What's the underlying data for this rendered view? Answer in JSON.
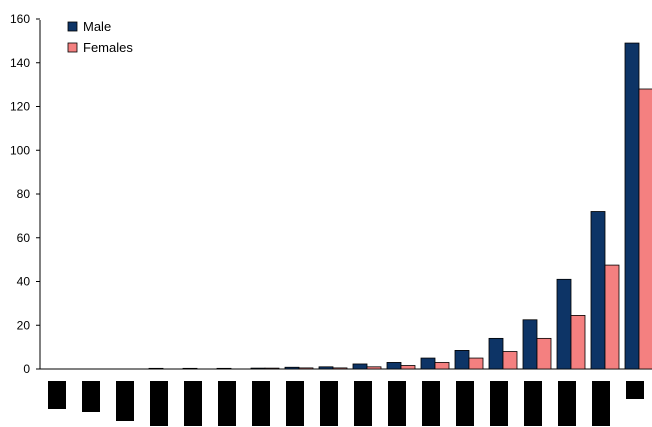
{
  "chart_data": {
    "type": "bar",
    "categories": [
      "",
      "",
      "",
      "",
      "",
      "",
      "",
      "",
      "",
      "",
      "",
      "",
      "",
      "",
      "",
      "",
      "",
      ""
    ],
    "series": [
      {
        "name": "Male",
        "color": "#0d3466",
        "values": [
          0,
          0,
          0,
          0.3,
          0.3,
          0.3,
          0.4,
          0.8,
          1,
          2.3,
          3,
          5,
          8.5,
          14,
          22.5,
          41,
          72,
          149
        ]
      },
      {
        "name": "Females",
        "color": "#f48080",
        "values": [
          0,
          0,
          0,
          0,
          0,
          0,
          0.4,
          0.5,
          0.5,
          1,
          1.6,
          3,
          5,
          8,
          14,
          24.5,
          47.5,
          128
        ]
      }
    ],
    "yticks": [
      "0",
      "20",
      "40",
      "60",
      "80",
      "100",
      "120",
      "140",
      "160"
    ],
    "ylim": [
      0,
      160
    ],
    "grid": false,
    "legend_position": "top-left",
    "xlabel": "",
    "ylabel": ""
  }
}
